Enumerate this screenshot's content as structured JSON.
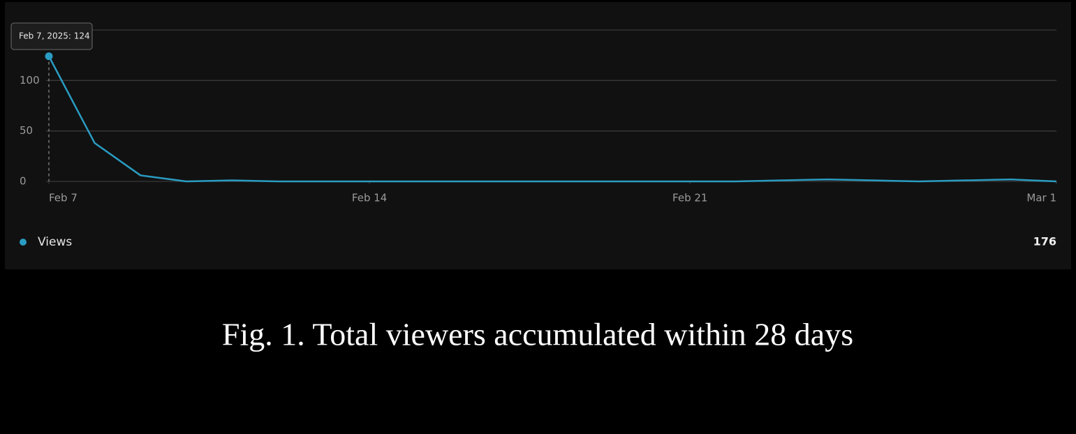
{
  "chart_data": {
    "type": "line",
    "x": [
      "2025-02-07",
      "2025-02-08",
      "2025-02-09",
      "2025-02-10",
      "2025-02-11",
      "2025-02-12",
      "2025-02-13",
      "2025-02-14",
      "2025-02-15",
      "2025-02-16",
      "2025-02-17",
      "2025-02-18",
      "2025-02-19",
      "2025-02-20",
      "2025-02-21",
      "2025-02-22",
      "2025-02-23",
      "2025-02-24",
      "2025-02-25",
      "2025-02-26",
      "2025-02-27",
      "2025-02-28",
      "2025-03-01"
    ],
    "series": [
      {
        "name": "Views",
        "color": "#2a9cc2",
        "values": [
          124,
          38,
          6,
          0,
          1,
          0,
          0,
          0,
          0,
          0,
          0,
          0,
          0,
          0,
          0,
          0,
          1,
          2,
          1,
          0,
          1,
          2,
          0
        ]
      }
    ],
    "total": 176,
    "xlim": [
      "2025-02-07",
      "2025-03-01"
    ],
    "xticks": [
      {
        "value": "2025-02-07",
        "label": "Feb 7"
      },
      {
        "value": "2025-02-14",
        "label": "Feb 14"
      },
      {
        "value": "2025-02-21",
        "label": "Feb 21"
      },
      {
        "value": "2025-03-01",
        "label": "Mar 1"
      }
    ],
    "ylim": [
      0,
      150
    ],
    "yticks": [
      0,
      50,
      100
    ],
    "grid": true,
    "tooltip": "Feb 7, 2025: 124",
    "caption": "Fig. 1. Total viewers accumulated within 28 days"
  }
}
